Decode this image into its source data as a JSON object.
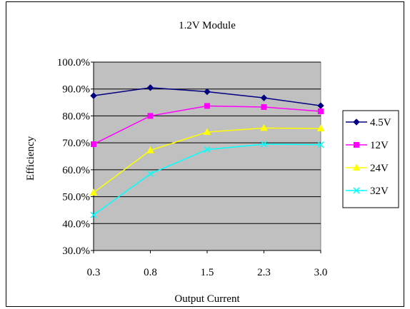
{
  "chart_data": {
    "type": "line",
    "title": "1.2V Module",
    "xlabel": "Output Current",
    "ylabel": "Efficiency",
    "categories": [
      "0.3",
      "0.8",
      "1.5",
      "2.3",
      "3.0"
    ],
    "y_ticks": [
      "30.0%",
      "40.0%",
      "50.0%",
      "60.0%",
      "70.0%",
      "80.0%",
      "90.0%",
      "100.0%"
    ],
    "ylim": [
      30,
      100
    ],
    "grid": true,
    "plot_background": "#c0c0c0",
    "legend_position": "right",
    "series": [
      {
        "name": "4.5V",
        "values": [
          87.5,
          90.5,
          89.0,
          86.7,
          83.8
        ],
        "color": "#000080",
        "marker": "diamond"
      },
      {
        "name": "12V",
        "values": [
          69.5,
          80.0,
          83.7,
          83.3,
          81.7
        ],
        "color": "#ff00ff",
        "marker": "square"
      },
      {
        "name": "24V",
        "values": [
          51.5,
          67.2,
          74.0,
          75.5,
          75.3
        ],
        "color": "#ffff00",
        "marker": "triangle"
      },
      {
        "name": "32V",
        "values": [
          43.2,
          58.5,
          67.5,
          69.5,
          69.3
        ],
        "color": "#00ffff",
        "marker": "x"
      }
    ]
  }
}
